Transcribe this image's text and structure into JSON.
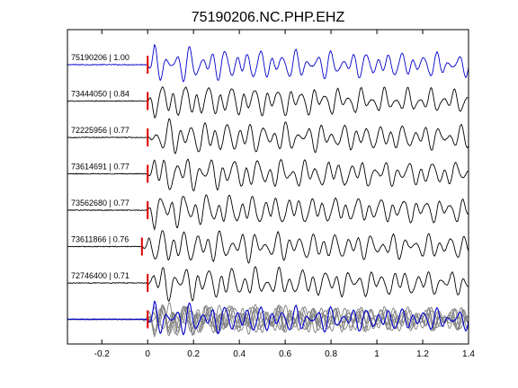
{
  "chart_data": {
    "type": "line",
    "title": "75190206.NC.PHP.EHZ",
    "xlabel": "",
    "ylabel": "",
    "xlim": [
      -0.35,
      1.4
    ],
    "x_ticks": [
      -0.2,
      0,
      0.2,
      0.4,
      0.6,
      0.8,
      1,
      1.2,
      1.4
    ],
    "x_tick_labels": [
      "-0.2",
      "0",
      "0.2",
      "0.4",
      "0.6",
      "0.8",
      "1",
      "1.2",
      "1.4"
    ],
    "grid": false,
    "legend": "none",
    "pick_time_s": 0,
    "colors": {
      "reference": "#0000cc",
      "correlated": "#000000",
      "overlay": "#808080",
      "pick": "#dd0000",
      "axes": "#000000"
    },
    "traces": [
      {
        "id": "75190206",
        "cc": "1.00",
        "label": "75190206 | 1.00",
        "pick_offset_s": 0.0,
        "reference": true
      },
      {
        "id": "73444050",
        "cc": "0.84",
        "label": "73444050 | 0.84",
        "pick_offset_s": 0.0,
        "reference": false
      },
      {
        "id": "72225956",
        "cc": "0.77",
        "label": "72225956 | 0.77",
        "pick_offset_s": 0.0,
        "reference": false
      },
      {
        "id": "73614691",
        "cc": "0.77",
        "label": "73614691 | 0.77",
        "pick_offset_s": 0.0,
        "reference": false
      },
      {
        "id": "73562680",
        "cc": "0.77",
        "label": "73562680 | 0.77",
        "pick_offset_s": 0.0,
        "reference": false
      },
      {
        "id": "73611866",
        "cc": "0.76",
        "label": "73611866 | 0.76",
        "pick_offset_s": -0.025,
        "reference": false
      },
      {
        "id": "72746400",
        "cc": "0.71",
        "label": "72746400 | 0.71",
        "pick_offset_s": 0.0,
        "reference": false
      }
    ],
    "overlay_trace": true
  }
}
